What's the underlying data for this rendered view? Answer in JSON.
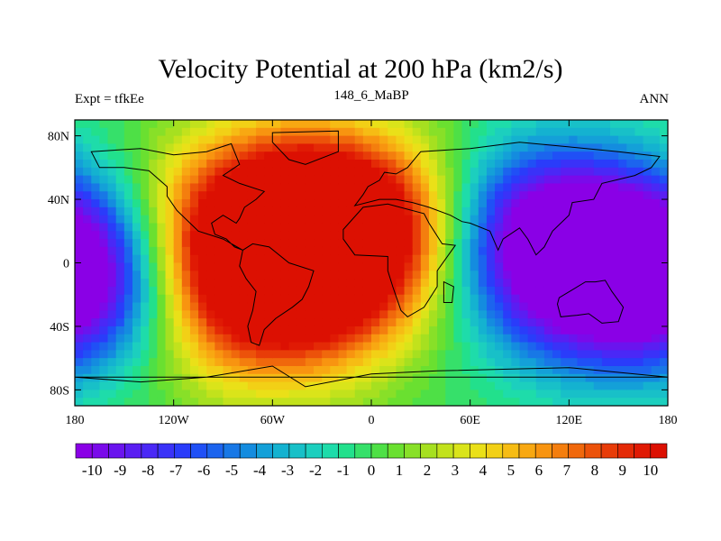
{
  "chart_data": {
    "type": "heatmap",
    "title": "Velocity Potential at 200 hPa (km2/s)",
    "subtitle_left": "Expt = tfkEe",
    "subtitle_center": "148_6_MaBP",
    "subtitle_right": "ANN",
    "x_range": [
      -180,
      180
    ],
    "y_range": [
      -90,
      90
    ],
    "x_ticks": [
      {
        "value": -180,
        "label": "180"
      },
      {
        "value": -120,
        "label": "120W"
      },
      {
        "value": -60,
        "label": "60W"
      },
      {
        "value": 0,
        "label": "0"
      },
      {
        "value": 60,
        "label": "60E"
      },
      {
        "value": 120,
        "label": "120E"
      },
      {
        "value": 180,
        "label": "180"
      }
    ],
    "y_ticks": [
      {
        "value": 80,
        "label": "80N"
      },
      {
        "value": 40,
        "label": "40N"
      },
      {
        "value": 0,
        "label": "0"
      },
      {
        "value": -40,
        "label": "40S"
      },
      {
        "value": -80,
        "label": "80S"
      }
    ],
    "field_centers": [
      {
        "lon": -55,
        "lat": 25,
        "value": 10.5
      },
      {
        "lon": -65,
        "lat": -18,
        "value": 9.5
      },
      {
        "lon": -20,
        "lat": 15,
        "value": 6.0
      },
      {
        "lon": 10,
        "lat": 30,
        "value": 3.5
      },
      {
        "lon": 140,
        "lat": -5,
        "value": -10.0
      },
      {
        "lon": 100,
        "lat": 25,
        "value": -7.0
      },
      {
        "lon": -178,
        "lat": -10,
        "value": -7.5
      }
    ],
    "levels": [
      -10,
      -9.5,
      -9,
      -8.5,
      -8,
      -7.5,
      -7,
      -6.5,
      -6,
      -5.5,
      -5,
      -4.5,
      -4,
      -3.5,
      -3,
      -2.5,
      -2,
      -1.5,
      -1,
      -0.5,
      0,
      0.5,
      1,
      1.5,
      2,
      2.5,
      3,
      3.5,
      4,
      4.5,
      5,
      5.5,
      6,
      6.5,
      7,
      7.5,
      8,
      8.5,
      9,
      9.5,
      10
    ],
    "colorbar_labels": [
      "-10",
      "-9",
      "-8",
      "-7",
      "-6",
      "-5",
      "-4",
      "-3",
      "-2",
      "-1",
      "0",
      "1",
      "2",
      "3",
      "4",
      "5",
      "6",
      "7",
      "8",
      "9",
      "10"
    ],
    "colormap": [
      "#8a00e6",
      "#7a0aea",
      "#6a14ee",
      "#5a1ef2",
      "#4a28f6",
      "#3a32f8",
      "#2a3cfa",
      "#2050f6",
      "#1c64ee",
      "#1878e6",
      "#148cdf",
      "#14a0d8",
      "#14b2d0",
      "#18c0c8",
      "#1ccfbe",
      "#1edcaa",
      "#22e08c",
      "#36e06a",
      "#4ee046",
      "#6ae030",
      "#88e028",
      "#a6e020",
      "#c2e21c",
      "#dae41a",
      "#eae018",
      "#f2d016",
      "#f6bc14",
      "#f8a812",
      "#f89410",
      "#f47e0e",
      "#f0680c",
      "#ec520a",
      "#e83c08",
      "#e42a06",
      "#e01a04",
      "#dc1002"
    ],
    "grid": false
  }
}
